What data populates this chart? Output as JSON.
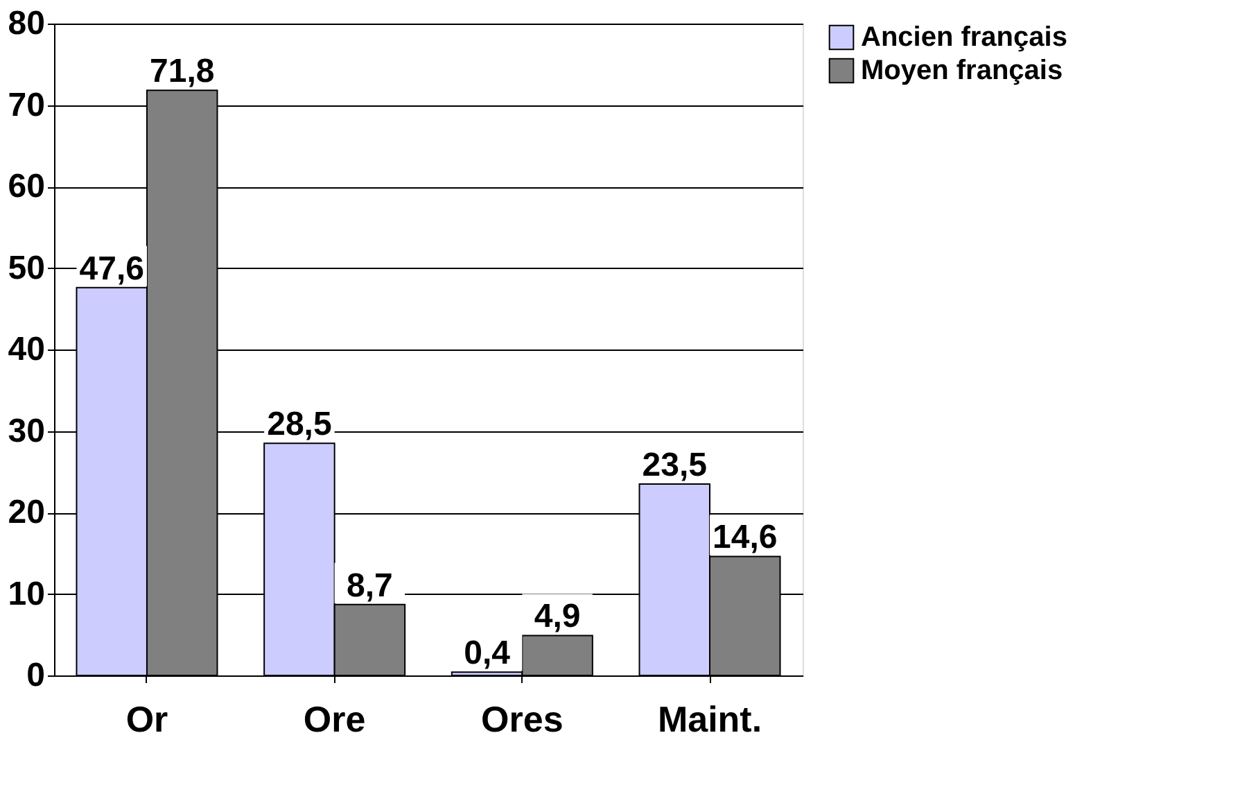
{
  "chart_data": {
    "type": "bar",
    "categories": [
      "Or",
      "Ore",
      "Ores",
      "Maint."
    ],
    "series": [
      {
        "name": "Ancien français",
        "color": "#ccccff",
        "values": [
          47.6,
          28.5,
          0.4,
          23.5
        ],
        "value_labels": [
          "47,6",
          "28,5",
          "0,4",
          "23,5"
        ]
      },
      {
        "name": "Moyen français",
        "color": "#808080",
        "values": [
          71.8,
          8.7,
          4.9,
          14.6
        ],
        "value_labels": [
          "71,8",
          "8,7",
          "4,9",
          "14,6"
        ]
      }
    ],
    "ylim": [
      0,
      80
    ],
    "yticks": [
      0,
      10,
      20,
      30,
      40,
      50,
      60,
      70,
      80
    ],
    "grid": "y",
    "legend": "right"
  }
}
